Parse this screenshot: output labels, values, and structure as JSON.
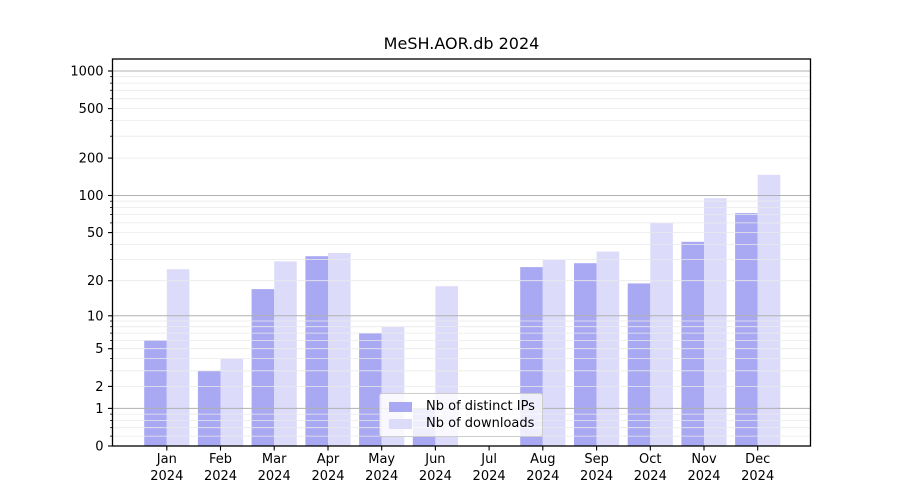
{
  "title": "MeSH.AOR.db 2024",
  "chart_data": {
    "type": "bar",
    "title": "MeSH.AOR.db 2024",
    "categories": [
      "Jan 2024",
      "Feb 2024",
      "Mar 2024",
      "Apr 2024",
      "May 2024",
      "Jun 2024",
      "Jul 2024",
      "Aug 2024",
      "Sep 2024",
      "Oct 2024",
      "Nov 2024",
      "Dec 2024"
    ],
    "series": [
      {
        "name": "Nb of distinct IPs",
        "color": "#a9a9f3",
        "values": [
          6,
          3,
          17,
          32,
          7,
          1,
          0,
          26,
          28,
          19,
          42,
          72
        ]
      },
      {
        "name": "Nb of downloads",
        "color": "#dcdcfa",
        "values": [
          25,
          4,
          29,
          34,
          8,
          18,
          0,
          30,
          35,
          60,
          95,
          147
        ]
      }
    ],
    "xlabel": "",
    "ylabel": "",
    "yscale": "symlog",
    "ylim": [
      0,
      1200
    ],
    "yticks": [
      0,
      1,
      2,
      5,
      10,
      20,
      50,
      100,
      200,
      500,
      1000
    ],
    "grid": "on",
    "grid_major_color": "#b0b0b0",
    "grid_minor_color": "#eaeaea",
    "legend_position": "lower center"
  }
}
